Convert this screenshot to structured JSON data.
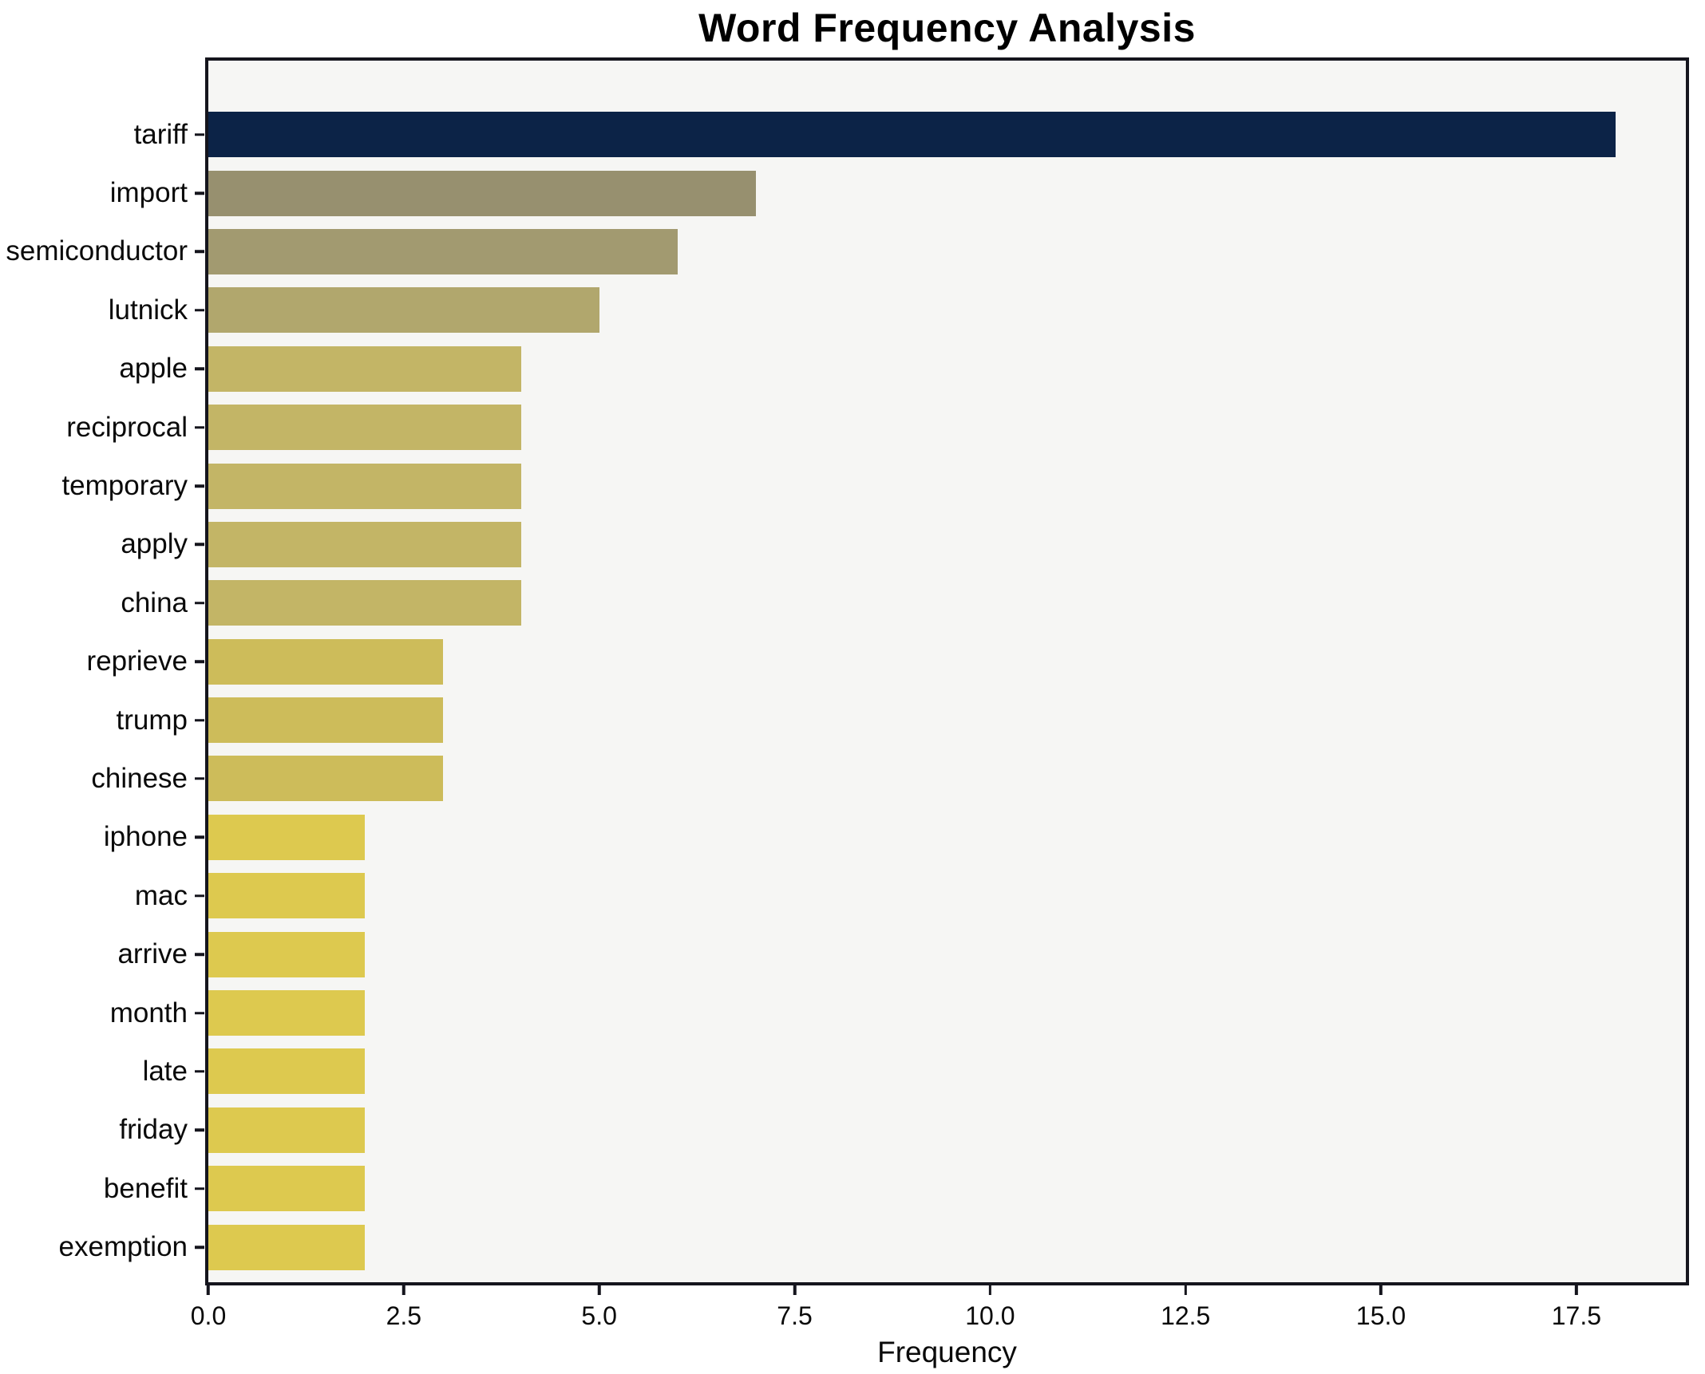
{
  "chart_data": {
    "type": "bar",
    "orientation": "horizontal",
    "title": "Word Frequency Analysis",
    "xlabel": "Frequency",
    "ylabel": "",
    "xlim": [
      0,
      18.9
    ],
    "grid": false,
    "legend": "none",
    "plot_background": "#f6f6f4",
    "spine_color": "#15151d",
    "categories": [
      "tariff",
      "import",
      "semiconductor",
      "lutnick",
      "apple",
      "reciprocal",
      "temporary",
      "apply",
      "china",
      "reprieve",
      "trump",
      "chinese",
      "iphone",
      "mac",
      "arrive",
      "month",
      "late",
      "friday",
      "benefit",
      "exemption"
    ],
    "values": [
      18,
      7,
      6,
      5,
      4,
      4,
      4,
      4,
      4,
      3,
      3,
      3,
      2,
      2,
      2,
      2,
      2,
      2,
      2,
      2
    ],
    "bar_colors": [
      "#0c2347",
      "#97906f",
      "#a29a70",
      "#b1a76d",
      "#c3b566",
      "#c3b566",
      "#c3b566",
      "#c3b566",
      "#c3b566",
      "#cdbc5a",
      "#cdbc5a",
      "#cdbc5a",
      "#ddc94f",
      "#ddc94f",
      "#ddc94f",
      "#ddc94f",
      "#ddc94f",
      "#ddc94f",
      "#ddc94f",
      "#ddc94f"
    ],
    "xticks": [
      {
        "value": 0,
        "label": "0.0"
      },
      {
        "value": 2.5,
        "label": "2.5"
      },
      {
        "value": 5,
        "label": "5.0"
      },
      {
        "value": 7.5,
        "label": "7.5"
      },
      {
        "value": 10,
        "label": "10.0"
      },
      {
        "value": 12.5,
        "label": "12.5"
      },
      {
        "value": 15,
        "label": "15.0"
      },
      {
        "value": 17.5,
        "label": "17.5"
      }
    ]
  }
}
